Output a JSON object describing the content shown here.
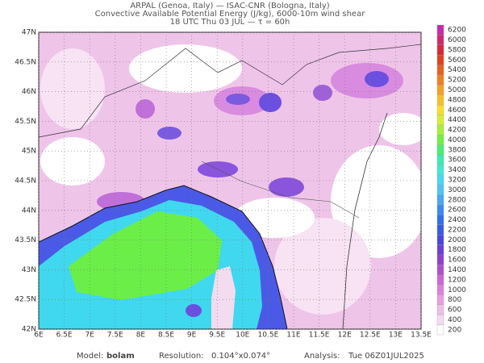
{
  "header": {
    "lines": [
      "ARPAL (Genoa, Italy)  —  ISAC-CNR (Bologna, Italy)",
      "Convective Available Potential Energy (J/kg), 6000-10m wind shear",
      "18 UTC Thu 03 JUL  —  τ = 60h"
    ]
  },
  "map": {
    "xlim": [
      6,
      13.5
    ],
    "ylim": [
      42,
      47
    ],
    "xticks": [
      {
        "value": 6,
        "label": "6E"
      },
      {
        "value": 6.5,
        "label": "6.5E"
      },
      {
        "value": 7,
        "label": "7E"
      },
      {
        "value": 7.5,
        "label": "7.5E"
      },
      {
        "value": 8,
        "label": "8E"
      },
      {
        "value": 8.5,
        "label": "8.5E"
      },
      {
        "value": 9,
        "label": "9E"
      },
      {
        "value": 9.5,
        "label": "9.5E"
      },
      {
        "value": 10,
        "label": "10E"
      },
      {
        "value": 10.5,
        "label": "10.5E"
      },
      {
        "value": 11,
        "label": "11E"
      },
      {
        "value": 11.5,
        "label": "11.5E"
      },
      {
        "value": 12,
        "label": "12E"
      },
      {
        "value": 12.5,
        "label": "12.5E"
      },
      {
        "value": 13,
        "label": "13E"
      },
      {
        "value": 13.5,
        "label": "13.5E"
      }
    ],
    "yticks": [
      {
        "value": 42,
        "label": "42N"
      },
      {
        "value": 42.5,
        "label": "42.5N"
      },
      {
        "value": 43,
        "label": "43N"
      },
      {
        "value": 43.5,
        "label": "43.5N"
      },
      {
        "value": 44,
        "label": "44N"
      },
      {
        "value": 44.5,
        "label": "44.5N"
      },
      {
        "value": 45,
        "label": "45N"
      },
      {
        "value": 45.5,
        "label": "45.5N"
      },
      {
        "value": 46,
        "label": "46N"
      },
      {
        "value": 46.5,
        "label": "46.5N"
      },
      {
        "value": 47,
        "label": "47N"
      }
    ]
  },
  "colorbar": {
    "levels": [
      200,
      400,
      600,
      800,
      1000,
      1200,
      1400,
      1600,
      1800,
      2000,
      2200,
      2400,
      2600,
      2800,
      3000,
      3200,
      3400,
      3600,
      3800,
      4000,
      4200,
      4400,
      4600,
      4800,
      5000,
      5200,
      5400,
      5600,
      5800,
      6000,
      6200
    ],
    "colors": [
      "#ffffff",
      "#f3dcef",
      "#eebee6",
      "#e89ee0",
      "#e07fdb",
      "#cc66d8",
      "#b04fd0",
      "#9040cc",
      "#6b3fd4",
      "#4a45e0",
      "#3a5ae6",
      "#2f70ec",
      "#3b8cf2",
      "#46a8f6",
      "#4ec4f8",
      "#4ad8f0",
      "#40e8d8",
      "#3cecb0",
      "#48ef78",
      "#70f046",
      "#a6f03a",
      "#d8ee30",
      "#f6e02c",
      "#f8c028",
      "#f6a024",
      "#f08020",
      "#ea601e",
      "#e2401e",
      "#d8283a",
      "#d02870",
      "#c82aa8"
    ]
  },
  "footer": {
    "model_label": "Model:",
    "model": "bolam",
    "resolution_label": "Resolution:",
    "resolution": "0.104°x0.074°",
    "analysis_label": "Analysis:",
    "analysis": "Tue 06Z01JUL2025"
  }
}
